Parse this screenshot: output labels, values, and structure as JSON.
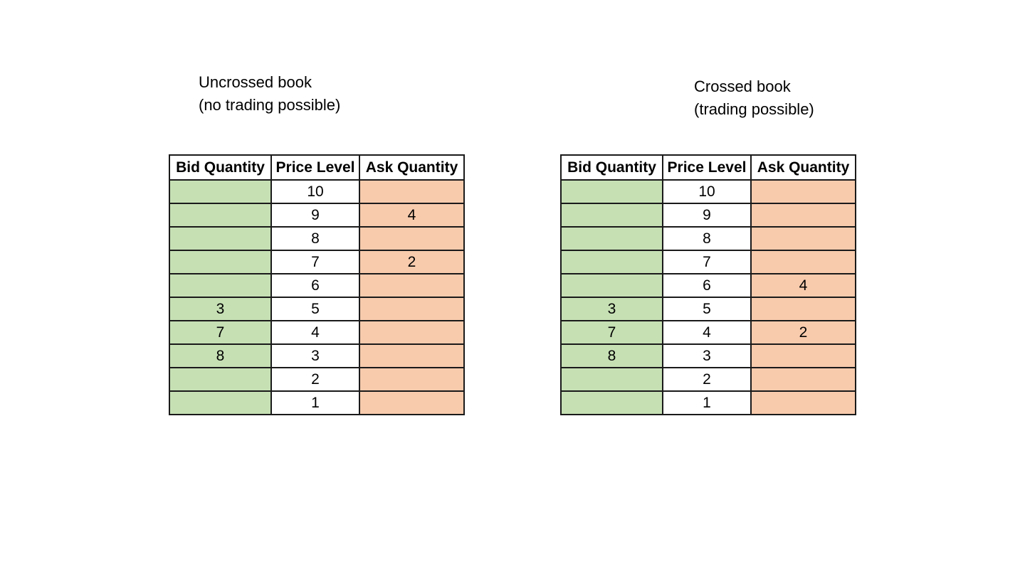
{
  "left": {
    "caption": [
      "Uncrossed book",
      "(no trading possible)"
    ],
    "headers": [
      "Bid Quantity",
      "Price Level",
      "Ask Quantity"
    ],
    "rows": [
      {
        "bid": "",
        "price": "10",
        "ask": ""
      },
      {
        "bid": "",
        "price": "9",
        "ask": "4"
      },
      {
        "bid": "",
        "price": "8",
        "ask": ""
      },
      {
        "bid": "",
        "price": "7",
        "ask": "2"
      },
      {
        "bid": "",
        "price": "6",
        "ask": ""
      },
      {
        "bid": "3",
        "price": "5",
        "ask": ""
      },
      {
        "bid": "7",
        "price": "4",
        "ask": ""
      },
      {
        "bid": "8",
        "price": "3",
        "ask": ""
      },
      {
        "bid": "",
        "price": "2",
        "ask": ""
      },
      {
        "bid": "",
        "price": "1",
        "ask": ""
      }
    ]
  },
  "right": {
    "caption": [
      "Crossed book",
      "(trading possible)"
    ],
    "headers": [
      "Bid Quantity",
      "Price Level",
      "Ask Quantity"
    ],
    "rows": [
      {
        "bid": "",
        "price": "10",
        "ask": ""
      },
      {
        "bid": "",
        "price": "9",
        "ask": ""
      },
      {
        "bid": "",
        "price": "8",
        "ask": ""
      },
      {
        "bid": "",
        "price": "7",
        "ask": ""
      },
      {
        "bid": "",
        "price": "6",
        "ask": "4"
      },
      {
        "bid": "3",
        "price": "5",
        "ask": "",
        "bid_bold": true
      },
      {
        "bid": "7",
        "price": "4",
        "ask": "2",
        "bid_bold": true,
        "ask_bold": true
      },
      {
        "bid": "8",
        "price": "3",
        "ask": ""
      },
      {
        "bid": "",
        "price": "2",
        "ask": ""
      },
      {
        "bid": "",
        "price": "1",
        "ask": ""
      }
    ]
  },
  "colors": {
    "bid": "#c6e0b4",
    "price": "#ffffff",
    "ask": "#f8cbad",
    "border": "#1a1a1a"
  }
}
